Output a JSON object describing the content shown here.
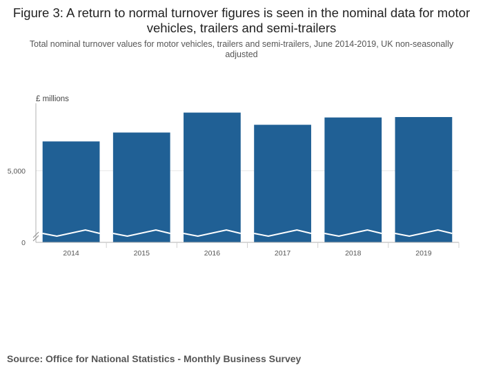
{
  "chart_data": {
    "type": "bar",
    "title": "Figure 3: A return to normal turnover figures is seen in the nominal data for motor vehicles, trailers and semi-trailers",
    "subtitle": "Total nominal turnover values for motor vehicles, trailers and semi-trailers, June 2014-2019, UK non-seasonally adjusted",
    "ylabel": "£ millions",
    "xlabel": "",
    "categories": [
      "2014",
      "2015",
      "2016",
      "2017",
      "2018",
      "2019"
    ],
    "values": [
      7040,
      7660,
      9050,
      8200,
      8710,
      8740
    ],
    "y_ticks": [
      {
        "value": 0,
        "label": "0"
      },
      {
        "value": 5000,
        "label": "5,000"
      }
    ],
    "axis_break": true,
    "ylim": [
      0,
      9700
    ],
    "bar_color": "#206095",
    "grid": true,
    "legend": "none"
  },
  "source": "Source: Office for National Statistics - Monthly Business Survey"
}
